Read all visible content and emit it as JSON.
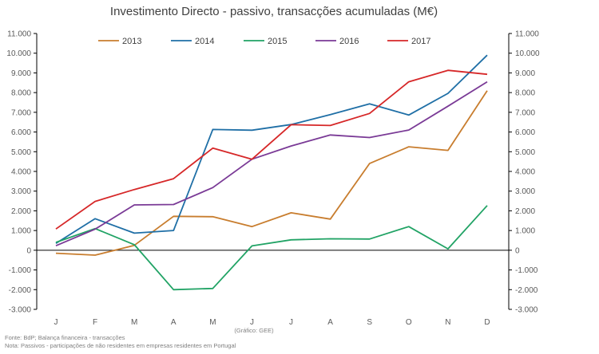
{
  "chart_data": {
    "type": "line",
    "title": "Investimento Directo - passivo, transacções acumuladas (M€)",
    "categories": [
      "J",
      "F",
      "M",
      "A",
      "M",
      "J",
      "J",
      "A",
      "S",
      "O",
      "N",
      "D"
    ],
    "ylim": [
      -3000,
      11000
    ],
    "ytick_values": [
      -3000,
      -2000,
      -1000,
      0,
      1000,
      2000,
      3000,
      4000,
      5000,
      6000,
      7000,
      8000,
      9000,
      10000,
      11000
    ],
    "ytick_labels": [
      "-3.000",
      "-2.000",
      "-1.000",
      "0",
      "1.000",
      "2.000",
      "3.000",
      "4.000",
      "5.000",
      "6.000",
      "7.000",
      "8.000",
      "9.000",
      "10.000",
      "11.000"
    ],
    "ytick_labels_right": [
      "-3.000",
      "-2.000",
      "-1.000",
      "0",
      "1.000",
      "2.000",
      "3.000",
      "4.000",
      "5.000",
      "6.000",
      "7.000",
      "8.000",
      "9.000",
      "10.000",
      "11.000"
    ],
    "legend_position": "top",
    "grid": false,
    "series": [
      {
        "name": "2013",
        "color": "#c87d2e",
        "values": [
          -150,
          -250,
          250,
          1720,
          1700,
          1200,
          1900,
          1580,
          4400,
          5250,
          5070,
          8100
        ]
      },
      {
        "name": "2014",
        "color": "#1f6fa6",
        "values": [
          350,
          1600,
          870,
          1000,
          6130,
          6090,
          6380,
          6880,
          7430,
          6860,
          7960,
          9900
        ]
      },
      {
        "name": "2015",
        "color": "#21a365",
        "values": [
          400,
          1100,
          280,
          -2000,
          -1940,
          220,
          530,
          580,
          570,
          1200,
          70,
          2270
        ]
      },
      {
        "name": "2016",
        "color": "#7a3a96",
        "values": [
          230,
          1070,
          2300,
          2320,
          3180,
          4620,
          5290,
          5850,
          5720,
          6100,
          7310,
          8550
        ]
      },
      {
        "name": "2017",
        "color": "#d62728",
        "values": [
          1080,
          2480,
          3080,
          3630,
          5180,
          4620,
          6370,
          6330,
          6940,
          8550,
          9130,
          8930
        ]
      }
    ],
    "annotations": {
      "graphic_credit": "(Gráfico: GEE)",
      "source": "Fonte: BdP; Balança financeira - transacções",
      "note": "Nota: Passivos - participações de não residentes em empresas residentes em Portugal"
    }
  }
}
